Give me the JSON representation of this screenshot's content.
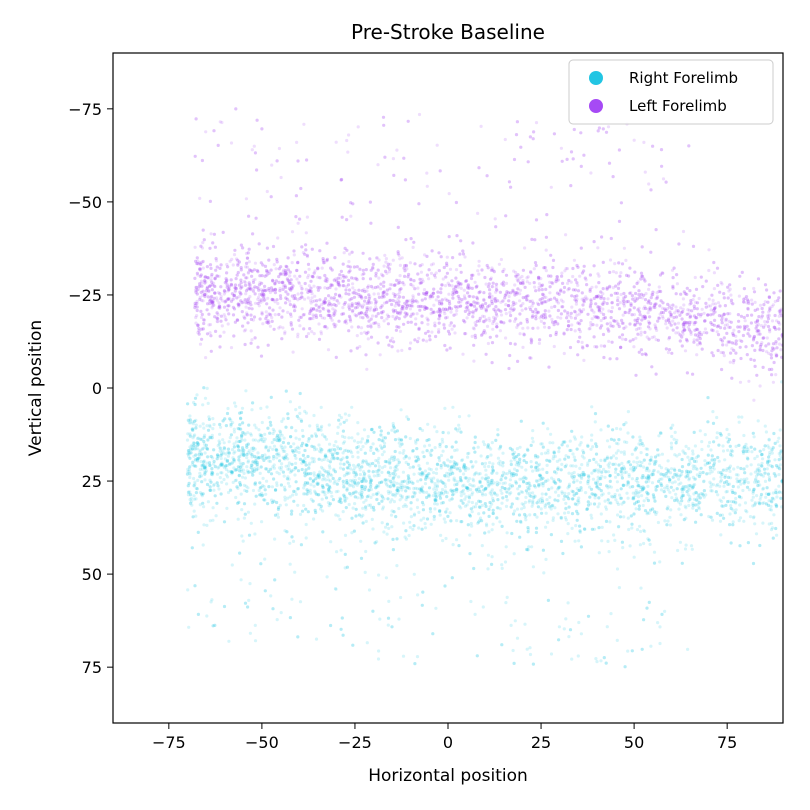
{
  "chart_data": {
    "type": "scatter",
    "title": "Pre-Stroke Baseline",
    "xlabel": "Horizontal position",
    "ylabel": "Vertical position",
    "xlim": [
      -90,
      90
    ],
    "ylim": [
      90,
      -90
    ],
    "y_inverted": true,
    "x_ticks": [
      -75,
      -50,
      -25,
      0,
      25,
      50,
      75
    ],
    "x_tick_labels": [
      "−75",
      "−50",
      "−25",
      "0",
      "25",
      "50",
      "75"
    ],
    "y_ticks": [
      -75,
      -50,
      -25,
      0,
      25,
      50,
      75
    ],
    "y_tick_labels": [
      "−75",
      "−50",
      "−25",
      "0",
      "25",
      "50",
      "75"
    ],
    "grid": false,
    "legend_position": "top-right",
    "series": [
      {
        "name": "Right Forelimb",
        "color": "#22c5e3",
        "point_count": 4200,
        "x_range": [
          -70,
          90
        ],
        "y_center_at_x": [
          [
            -65,
            18
          ],
          [
            -40,
            21
          ],
          [
            -20,
            24
          ],
          [
            0,
            25
          ],
          [
            25,
            26
          ],
          [
            50,
            25
          ],
          [
            75,
            24
          ],
          [
            90,
            24
          ]
        ],
        "y_spread": 7
      },
      {
        "name": "Left Forelimb",
        "color": "#a64af5",
        "point_count": 4200,
        "x_range": [
          -68,
          90
        ],
        "y_center_at_x": [
          [
            -65,
            -26
          ],
          [
            -40,
            -25
          ],
          [
            -20,
            -24
          ],
          [
            0,
            -24
          ],
          [
            25,
            -23
          ],
          [
            50,
            -21
          ],
          [
            75,
            -18
          ],
          [
            90,
            -15
          ]
        ],
        "y_spread": 6
      }
    ]
  }
}
